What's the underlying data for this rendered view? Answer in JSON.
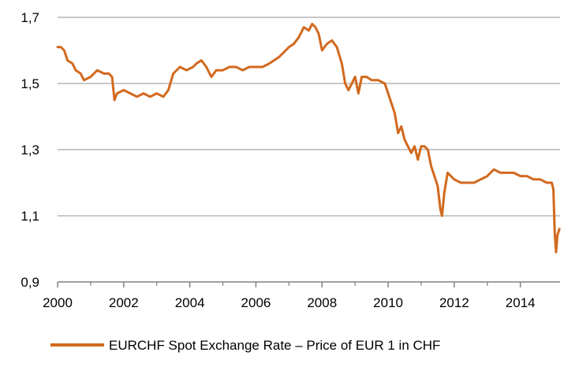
{
  "chart_data": {
    "type": "line",
    "title": "",
    "xlabel": "",
    "ylabel": "",
    "xlim": [
      2000,
      2015.2
    ],
    "ylim": [
      0.9,
      1.7
    ],
    "x_ticks": [
      "2000",
      "2002",
      "2004",
      "2006",
      "2008",
      "2010",
      "2012",
      "2014"
    ],
    "y_ticks": [
      "0,9",
      "1,1",
      "1,3",
      "1,5",
      "1,7"
    ],
    "grid": "horizontal",
    "legend_position": "bottom",
    "series": [
      {
        "name": "EURCHF  Spot Exchange Rate – Price of EUR 1 in CHF",
        "color": "#d2691e",
        "x": [
          2000.0,
          2000.1,
          2000.2,
          2000.3,
          2000.45,
          2000.55,
          2000.7,
          2000.8,
          2001.0,
          2001.2,
          2001.4,
          2001.55,
          2001.65,
          2001.72,
          2001.8,
          2002.0,
          2002.2,
          2002.4,
          2002.6,
          2002.8,
          2003.0,
          2003.2,
          2003.35,
          2003.5,
          2003.7,
          2003.9,
          2004.1,
          2004.2,
          2004.35,
          2004.5,
          2004.65,
          2004.8,
          2005.0,
          2005.2,
          2005.4,
          2005.6,
          2005.8,
          2006.0,
          2006.2,
          2006.4,
          2006.55,
          2006.7,
          2006.9,
          2007.0,
          2007.15,
          2007.3,
          2007.45,
          2007.6,
          2007.7,
          2007.8,
          2007.9,
          2008.0,
          2008.15,
          2008.3,
          2008.45,
          2008.6,
          2008.7,
          2008.8,
          2008.9,
          2009.0,
          2009.1,
          2009.2,
          2009.35,
          2009.5,
          2009.7,
          2009.9,
          2010.0,
          2010.1,
          2010.2,
          2010.3,
          2010.4,
          2010.5,
          2010.6,
          2010.7,
          2010.8,
          2010.9,
          2011.0,
          2011.1,
          2011.2,
          2011.3,
          2011.4,
          2011.5,
          2011.58,
          2011.63,
          2011.7,
          2011.8,
          2012.0,
          2012.2,
          2012.4,
          2012.6,
          2012.8,
          2013.0,
          2013.2,
          2013.4,
          2013.6,
          2013.8,
          2014.0,
          2014.2,
          2014.4,
          2014.6,
          2014.8,
          2014.95,
          2015.0,
          2015.04,
          2015.08,
          2015.12,
          2015.18
        ],
        "y": [
          1.61,
          1.61,
          1.6,
          1.57,
          1.56,
          1.54,
          1.53,
          1.51,
          1.52,
          1.54,
          1.53,
          1.53,
          1.52,
          1.45,
          1.47,
          1.48,
          1.47,
          1.46,
          1.47,
          1.46,
          1.47,
          1.46,
          1.48,
          1.53,
          1.55,
          1.54,
          1.55,
          1.56,
          1.57,
          1.55,
          1.52,
          1.54,
          1.54,
          1.55,
          1.55,
          1.54,
          1.55,
          1.55,
          1.55,
          1.56,
          1.57,
          1.58,
          1.6,
          1.61,
          1.62,
          1.64,
          1.67,
          1.66,
          1.68,
          1.67,
          1.65,
          1.6,
          1.62,
          1.63,
          1.61,
          1.56,
          1.5,
          1.48,
          1.5,
          1.52,
          1.47,
          1.52,
          1.52,
          1.51,
          1.51,
          1.5,
          1.47,
          1.44,
          1.41,
          1.35,
          1.37,
          1.33,
          1.31,
          1.29,
          1.31,
          1.27,
          1.31,
          1.31,
          1.3,
          1.25,
          1.22,
          1.19,
          1.12,
          1.1,
          1.17,
          1.23,
          1.21,
          1.2,
          1.2,
          1.2,
          1.21,
          1.22,
          1.24,
          1.23,
          1.23,
          1.23,
          1.22,
          1.22,
          1.21,
          1.21,
          1.2,
          1.2,
          1.18,
          1.05,
          0.99,
          1.04,
          1.06
        ]
      }
    ]
  }
}
